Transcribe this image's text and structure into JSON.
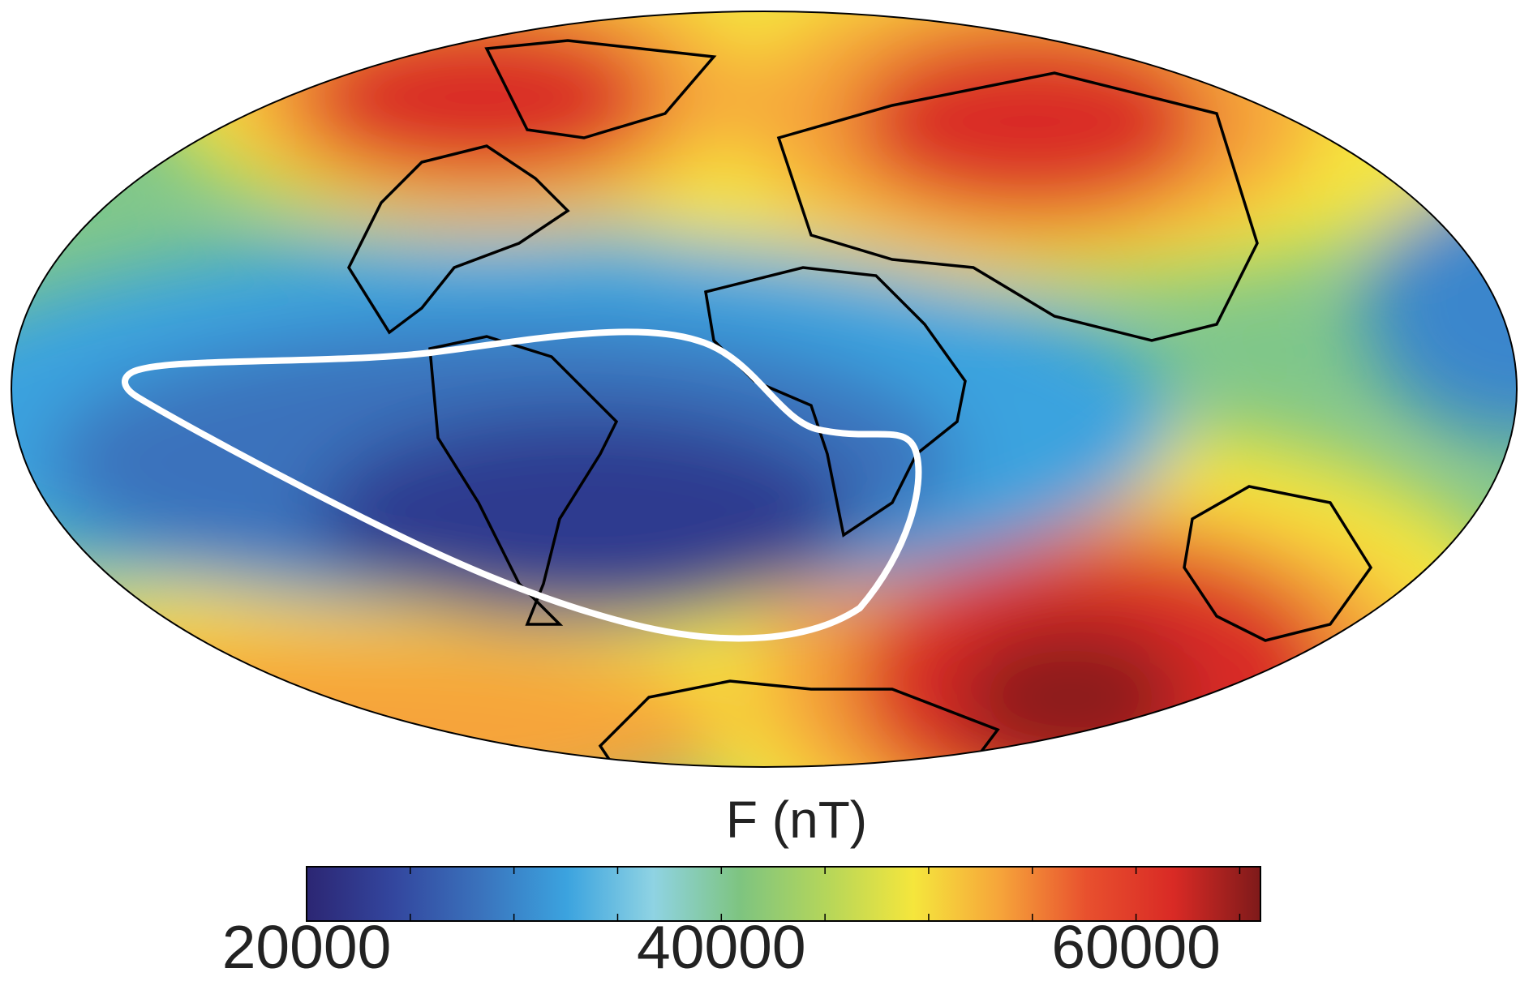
{
  "chart_data": {
    "type": "map",
    "colorbar": {
      "title": "F (nT)",
      "lim": [
        20000,
        66000
      ],
      "ticks": [
        20000,
        40000,
        60000
      ],
      "minor_ticks": [
        25000,
        30000,
        35000,
        45000,
        50000,
        55000,
        65000
      ],
      "colormap": [
        "#2c2673",
        "#33469e",
        "#3a72bc",
        "#3ba3df",
        "#8fd3e3",
        "#7ec480",
        "#b5d65a",
        "#f5e63c",
        "#f6a43a",
        "#e8502e",
        "#d92a25",
        "#7e1a1a"
      ]
    }
  }
}
